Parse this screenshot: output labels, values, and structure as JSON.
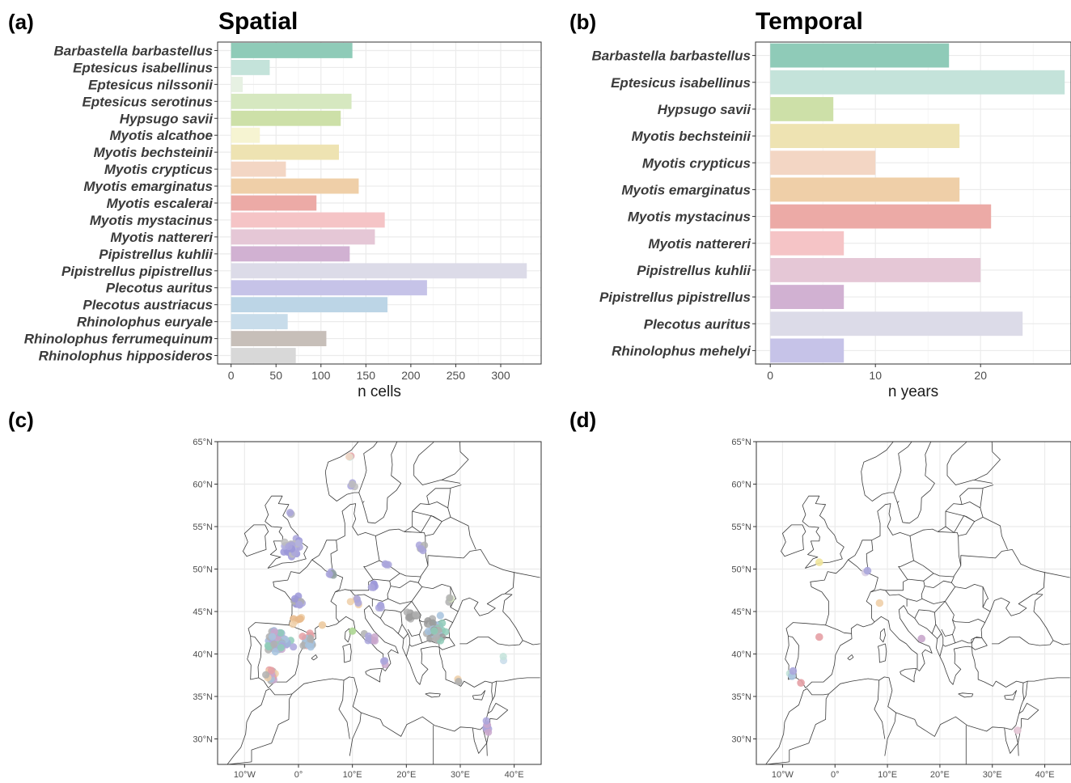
{
  "panels": {
    "a": {
      "letter": "(a)",
      "title": "Spatial"
    },
    "b": {
      "letter": "(b)",
      "title": "Temporal"
    },
    "c": {
      "letter": "(c)"
    },
    "d": {
      "letter": "(d)"
    }
  },
  "chart_data": [
    {
      "panel": "a",
      "type": "bar",
      "orientation": "horizontal",
      "title": "Spatial",
      "xlabel": "n cells",
      "ylabel": "",
      "xlim": [
        -15,
        345
      ],
      "xticks": [
        0,
        50,
        100,
        150,
        200,
        250,
        300
      ],
      "categories": [
        "Barbastella barbastellus",
        "Eptesicus isabellinus",
        "Eptesicus nilssonii",
        "Eptesicus serotinus",
        "Hypsugo savii",
        "Myotis alcathoe",
        "Myotis bechsteinii",
        "Myotis crypticus",
        "Myotis emarginatus",
        "Myotis escalerai",
        "Myotis mystacinus",
        "Myotis nattereri",
        "Pipistrellus kuhlii",
        "Pipistrellus pipistrellus",
        "Plecotus auritus",
        "Plecotus austriacus",
        "Rhinolophus euryale",
        "Rhinolophus ferrumequinum",
        "Rhinolophus hipposideros"
      ],
      "values": [
        135,
        43,
        13,
        134,
        122,
        32,
        120,
        61,
        142,
        95,
        171,
        160,
        132,
        329,
        218,
        174,
        63,
        106,
        72
      ],
      "colors": [
        "#8fcbb8",
        "#c4e3da",
        "#e7f1e3",
        "#d6e8c0",
        "#cde0a8",
        "#f6f4d2",
        "#eee3b2",
        "#f3d6c4",
        "#efcfa8",
        "#ecaaa6",
        "#f5c4c6",
        "#e5c7d6",
        "#d1b1d2",
        "#dcdbe8",
        "#c6c3e8",
        "#bcd5e6",
        "#c8dcea",
        "#c7bfb9",
        "#d8d8d8"
      ],
      "grid": true
    },
    {
      "panel": "b",
      "type": "bar",
      "orientation": "horizontal",
      "title": "Temporal",
      "xlabel": "n years",
      "ylabel": "",
      "xlim": [
        -1.4,
        28.6
      ],
      "xticks": [
        0,
        10,
        20
      ],
      "categories": [
        "Barbastella barbastellus",
        "Eptesicus isabellinus",
        "Hypsugo savii",
        "Myotis bechsteinii",
        "Myotis crypticus",
        "Myotis emarginatus",
        "Myotis mystacinus",
        "Myotis nattereri",
        "Pipistrellus kuhlii",
        "Pipistrellus pipistrellus",
        "Plecotus auritus",
        "Rhinolophus mehelyi"
      ],
      "values": [
        17,
        28,
        6,
        18,
        10,
        18,
        21,
        7,
        20,
        7,
        24,
        7
      ],
      "colors": [
        "#8fcbb8",
        "#c4e3da",
        "#cde0a8",
        "#eee3b2",
        "#f3d6c4",
        "#efcfa8",
        "#ecaaa6",
        "#f5c4c6",
        "#e5c7d6",
        "#d1b1d2",
        "#dcdbe8",
        "#c6c3e8"
      ],
      "grid": true
    },
    {
      "panel": "c",
      "type": "scatter",
      "subtype": "map",
      "xlim": [
        -15,
        45
      ],
      "ylim": [
        27,
        65
      ],
      "xticks": [
        "10°W",
        "0°",
        "10°E",
        "20°E",
        "30°E",
        "40°E"
      ],
      "yticks": [
        "30°N",
        "35°N",
        "40°N",
        "45°N",
        "50°N",
        "55°N",
        "60°N",
        "65°N"
      ],
      "xtick_values": [
        -10,
        0,
        10,
        20,
        30,
        40
      ],
      "ytick_values": [
        30,
        35,
        40,
        45,
        50,
        55,
        60,
        65
      ],
      "clusters": [
        {
          "lon": -1,
          "lat": 52.5,
          "n": 45,
          "sx": 2.2,
          "sy": 1.3,
          "colors": [
            "#aaa6dc",
            "#9b97d8",
            "#b3b0e0",
            "#bdbdbd"
          ]
        },
        {
          "lon": -1.5,
          "lat": 56.5,
          "n": 3,
          "sx": 0.6,
          "sy": 0.8,
          "colors": [
            "#aaa6dc",
            "#bdbdbd"
          ]
        },
        {
          "lon": -3.5,
          "lat": 41.5,
          "n": 55,
          "sx": 3.2,
          "sy": 1.7,
          "colors": [
            "#a7c3de",
            "#b0b0b0",
            "#9fb6d8",
            "#c9a7cc",
            "#aaa6dc",
            "#8fcbb8"
          ]
        },
        {
          "lon": -5,
          "lat": 37.5,
          "n": 22,
          "sx": 1.6,
          "sy": 0.9,
          "colors": [
            "#b0b0b0",
            "#e6a0a5",
            "#a7c3de",
            "#c9a7cc",
            "#efcfa8"
          ]
        },
        {
          "lon": 1.8,
          "lat": 41.5,
          "n": 22,
          "sx": 1.3,
          "sy": 1.2,
          "colors": [
            "#b0b0b0",
            "#a7c3de",
            "#e6a0a5"
          ]
        },
        {
          "lon": 0,
          "lat": 46,
          "n": 14,
          "sx": 1.2,
          "sy": 1.2,
          "colors": [
            "#aaa6dc",
            "#9b97d8",
            "#b0b0b0"
          ]
        },
        {
          "lon": 0,
          "lat": 44,
          "n": 6,
          "sx": 1.4,
          "sy": 0.8,
          "colors": [
            "#efcfa8",
            "#e8b98a"
          ]
        },
        {
          "lon": 25.5,
          "lat": 43,
          "n": 40,
          "sx": 2.3,
          "sy": 2.0,
          "colors": [
            "#a7c3de",
            "#b0b0b0",
            "#9a9a9a",
            "#8fcbb8"
          ]
        },
        {
          "lon": 21,
          "lat": 44.5,
          "n": 8,
          "sx": 1.2,
          "sy": 1.2,
          "colors": [
            "#9a9a9a",
            "#b0b0b0"
          ]
        },
        {
          "lon": 35,
          "lat": 31.5,
          "n": 10,
          "sx": 0.4,
          "sy": 1.5,
          "colors": [
            "#c9a7cc",
            "#aaa6dc"
          ]
        },
        {
          "lon": 13.5,
          "lat": 42,
          "n": 8,
          "sx": 1.8,
          "sy": 1.0,
          "colors": [
            "#aaa6dc",
            "#c9a7cc",
            "#b0b0b0"
          ]
        },
        {
          "lon": 10.5,
          "lat": 46.2,
          "n": 6,
          "sx": 1.2,
          "sy": 0.7,
          "colors": [
            "#efcfa8",
            "#aaa6dc"
          ]
        },
        {
          "lon": 14,
          "lat": 48,
          "n": 5,
          "sx": 1.0,
          "sy": 0.7,
          "colors": [
            "#aaa6dc",
            "#9b97d8"
          ]
        },
        {
          "lon": 6,
          "lat": 49.6,
          "n": 5,
          "sx": 0.8,
          "sy": 0.5,
          "colors": [
            "#aaa6dc",
            "#8fa0a0"
          ]
        },
        {
          "lon": 22.5,
          "lat": 52.5,
          "n": 5,
          "sx": 1.3,
          "sy": 0.9,
          "colors": [
            "#aaa6dc",
            "#b0b0b0"
          ]
        },
        {
          "lon": 10,
          "lat": 60,
          "n": 4,
          "sx": 0.6,
          "sy": 0.6,
          "colors": [
            "#aaa6dc",
            "#bdbdbd"
          ]
        },
        {
          "lon": 9.5,
          "lat": 63.2,
          "n": 3,
          "sx": 0.4,
          "sy": 0.2,
          "colors": [
            "#e6a0a5",
            "#c4e3da",
            "#f3d6c4"
          ]
        },
        {
          "lon": 16.5,
          "lat": 50.5,
          "n": 3,
          "sx": 0.6,
          "sy": 0.4,
          "colors": [
            "#aaa6dc"
          ]
        },
        {
          "lon": 28,
          "lat": 46.5,
          "n": 3,
          "sx": 0.5,
          "sy": 0.6,
          "colors": [
            "#b0b0b0",
            "#d6e8c0"
          ]
        },
        {
          "lon": 15,
          "lat": 45.5,
          "n": 3,
          "sx": 0.5,
          "sy": 0.5,
          "colors": [
            "#aaa6dc",
            "#9b97d8"
          ]
        },
        {
          "lon": 30,
          "lat": 37,
          "n": 3,
          "sx": 1.2,
          "sy": 0.5,
          "colors": [
            "#b0b0b0",
            "#efcfa8"
          ]
        },
        {
          "lon": 38,
          "lat": 39.5,
          "n": 2,
          "sx": 0.4,
          "sy": 1.0,
          "colors": [
            "#c8dcea",
            "#c4e3da"
          ]
        },
        {
          "lon": 16,
          "lat": 39,
          "n": 3,
          "sx": 0.3,
          "sy": 1.0,
          "colors": [
            "#aaa6dc",
            "#c9a7cc"
          ]
        },
        {
          "lon": 4.5,
          "lat": 43.5,
          "n": 2,
          "sx": 0.2,
          "sy": 0.2,
          "colors": [
            "#efcfa8"
          ]
        },
        {
          "lon": 10,
          "lat": 42.7,
          "n": 1,
          "sx": 0.1,
          "sy": 0.1,
          "colors": [
            "#a8d48c"
          ]
        }
      ]
    },
    {
      "panel": "d",
      "type": "scatter",
      "subtype": "map",
      "xlim": [
        -15,
        45
      ],
      "ylim": [
        27,
        65
      ],
      "xticks": [
        "10°W",
        "0°",
        "10°E",
        "20°E",
        "30°E",
        "40°E"
      ],
      "yticks": [
        "30°N",
        "35°N",
        "40°N",
        "45°N",
        "50°N",
        "55°N",
        "60°N",
        "65°N"
      ],
      "xtick_values": [
        -10,
        0,
        10,
        20,
        30,
        40
      ],
      "ytick_values": [
        30,
        35,
        40,
        45,
        50,
        55,
        60,
        65
      ],
      "points": [
        {
          "lon": -3,
          "lat": 50.8,
          "color": "#f0e49a"
        },
        {
          "lon": 5.8,
          "lat": 49.6,
          "color": "#d9cfe3"
        },
        {
          "lon": 6.2,
          "lat": 49.8,
          "color": "#aaa6dc"
        },
        {
          "lon": 8.5,
          "lat": 46,
          "color": "#efcfa8"
        },
        {
          "lon": -3,
          "lat": 42,
          "color": "#e6a0a5"
        },
        {
          "lon": 16.5,
          "lat": 41.8,
          "color": "#c9a7cc"
        },
        {
          "lon": -8.6,
          "lat": 37.7,
          "color": "#c4e3da"
        },
        {
          "lon": -8.2,
          "lat": 37.4,
          "color": "#a7c3de"
        },
        {
          "lon": -8.0,
          "lat": 38.0,
          "color": "#aaa6dc"
        },
        {
          "lon": -6.5,
          "lat": 36.6,
          "color": "#e6a0a5"
        },
        {
          "lon": 34.8,
          "lat": 31.0,
          "color": "#e5c7d6"
        }
      ]
    }
  ]
}
